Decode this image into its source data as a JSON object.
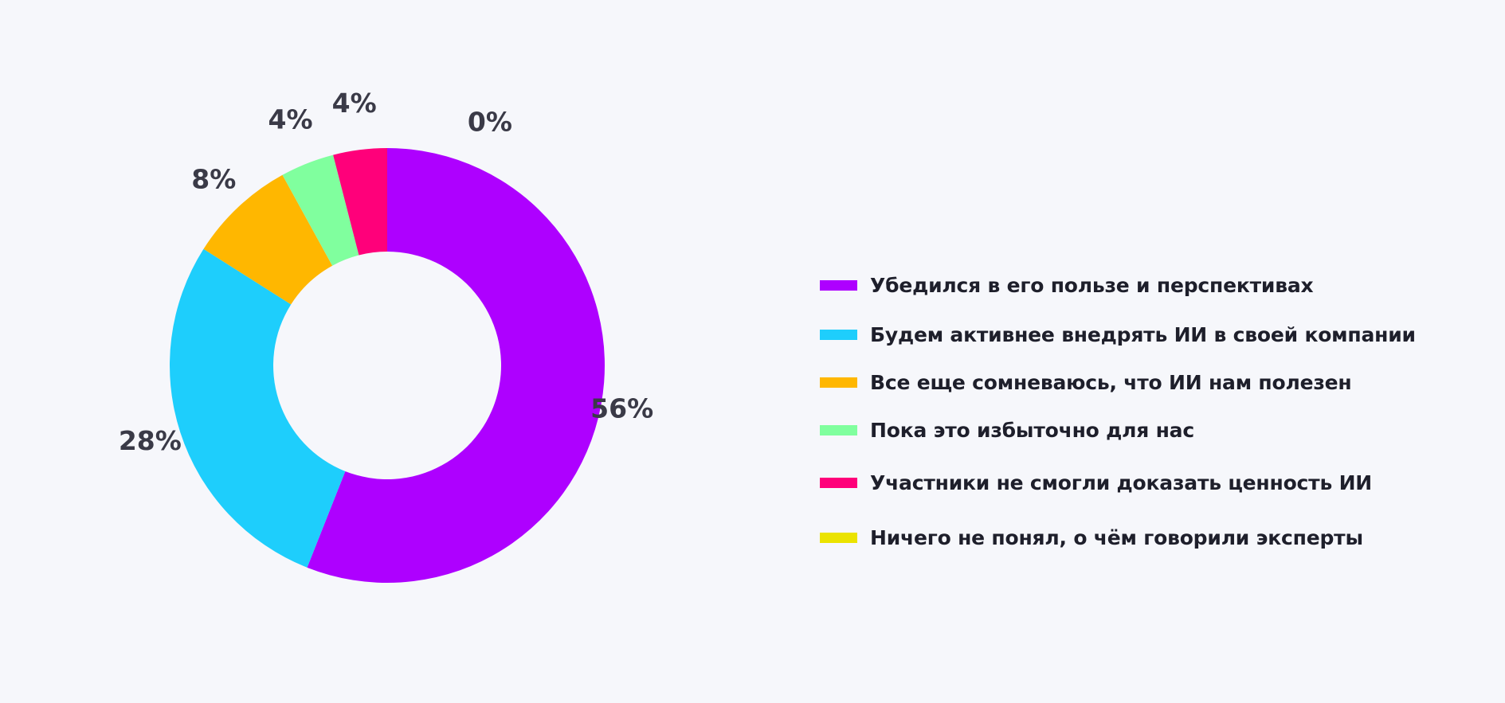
{
  "chart_data": {
    "type": "pie",
    "donut": true,
    "categories": [
      "Убедился в его пользе и перспективах",
      "Будем активнее внедрять ИИ в своей компании",
      "Все еще сомневаюсь, что ИИ нам полезен",
      "Пока это избыточно для нас",
      "Участники не смогли доказать ценность ИИ",
      "Ничего не понял, о чём говорили эксперты"
    ],
    "values": [
      56,
      28,
      8,
      4,
      4,
      0
    ],
    "data_labels": [
      "56%",
      "28%",
      "8%",
      "4%",
      "4%",
      "0%"
    ],
    "colors": [
      "#ae00ff",
      "#1ecefc",
      "#ffb700",
      "#80ff9e",
      "#ff007a",
      "#ebe300"
    ],
    "legend_position": "right",
    "title": ""
  }
}
